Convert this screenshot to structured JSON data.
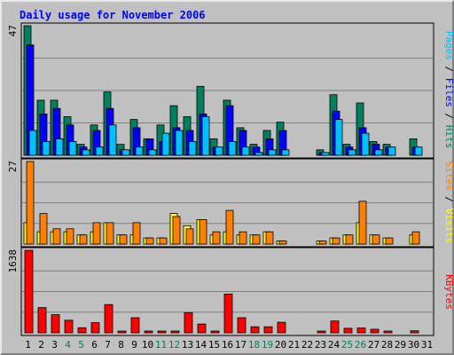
{
  "chart_data": {
    "type": "bar",
    "title": "Daily usage for November 2006",
    "categories": [
      "1",
      "2",
      "3",
      "4",
      "5",
      "6",
      "7",
      "8",
      "9",
      "10",
      "11",
      "12",
      "13",
      "14",
      "15",
      "16",
      "17",
      "18",
      "19",
      "20",
      "21",
      "22",
      "23",
      "24",
      "25",
      "26",
      "27",
      "28",
      "29",
      "30",
      "31"
    ],
    "weekend_days": [
      "4",
      "5",
      "11",
      "12",
      "18",
      "19",
      "25",
      "26"
    ],
    "colors": {
      "hits": "#00805c",
      "files": "#0000ff",
      "pages": "#00c0ff",
      "visits": "#ffff00",
      "sites": "#ff8000",
      "kbytes": "#ff0000",
      "weekday_label": "#000000",
      "weekend_label": "#00805c"
    },
    "panels": [
      {
        "id": "hits",
        "max_label": "47",
        "ymax": 47,
        "legend": [
          {
            "text": "Pages",
            "color": "#00c0ff"
          },
          {
            "text": " / ",
            "color": "#000000"
          },
          {
            "text": "Files",
            "color": "#0000ff"
          },
          {
            "text": " / ",
            "color": "#000000"
          },
          {
            "text": "Hits",
            "color": "#00805c"
          }
        ],
        "series": [
          {
            "name": "Hits",
            "color": "#00805c",
            "values": [
              47,
              20,
              20,
              14,
              4,
              11,
              23,
              4,
              13,
              6,
              11,
              18,
              14,
              25,
              6,
              20,
              10,
              4,
              9,
              12,
              0,
              0,
              2,
              22,
              4,
              19,
              5,
              4,
              0,
              6,
              0
            ]
          },
          {
            "name": "Files",
            "color": "#0000ff",
            "values": [
              40,
              15,
              17,
              11,
              3,
              9,
              17,
              2,
              10,
              6,
              5,
              10,
              9,
              15,
              3,
              18,
              9,
              3,
              6,
              9,
              0,
              0,
              1,
              16,
              3,
              10,
              4,
              3,
              0,
              3,
              0
            ]
          },
          {
            "name": "Pages",
            "color": "#00c0ff",
            "values": [
              9,
              5,
              6,
              5,
              2,
              3,
              11,
              2,
              3,
              2,
              8,
              9,
              5,
              14,
              3,
              5,
              3,
              1,
              2,
              2,
              0,
              0,
              1,
              13,
              2,
              8,
              2,
              3,
              0,
              3,
              0
            ]
          }
        ]
      },
      {
        "id": "visits",
        "max_label": "27",
        "ymax": 27,
        "legend": [
          {
            "text": "Sites",
            "color": "#ff8000"
          },
          {
            "text": " / ",
            "color": "#000000"
          },
          {
            "text": "Visits",
            "color": "#ffff00"
          }
        ],
        "series": [
          {
            "name": "Visits",
            "color": "#ffff00",
            "values": [
              7,
              4,
              4,
              4,
              3,
              4,
              7,
              3,
              3,
              2,
              2,
              10,
              6,
              8,
              3,
              4,
              3,
              3,
              4,
              1,
              0,
              0,
              1,
              2,
              3,
              7,
              3,
              2,
              0,
              3,
              0
            ]
          },
          {
            "name": "Sites",
            "color": "#ff8000",
            "values": [
              27,
              10,
              5,
              5,
              3,
              7,
              7,
              3,
              7,
              2,
              2,
              9,
              5,
              8,
              4,
              11,
              4,
              3,
              4,
              1,
              0,
              0,
              1,
              2,
              3,
              14,
              3,
              2,
              0,
              4,
              0
            ]
          }
        ]
      },
      {
        "id": "kbytes",
        "max_label": "1638",
        "ymax": 1638,
        "legend": [
          {
            "text": "KBytes",
            "color": "#ff0000"
          }
        ],
        "series": [
          {
            "name": "KBytes",
            "color": "#ff0000",
            "values": [
              1638,
              500,
              360,
              250,
              100,
              200,
              560,
              30,
              300,
              30,
              30,
              30,
              400,
              175,
              30,
              770,
              300,
              120,
              120,
              210,
              0,
              0,
              30,
              235,
              90,
              95,
              70,
              30,
              0,
              40,
              0
            ]
          }
        ]
      }
    ]
  }
}
